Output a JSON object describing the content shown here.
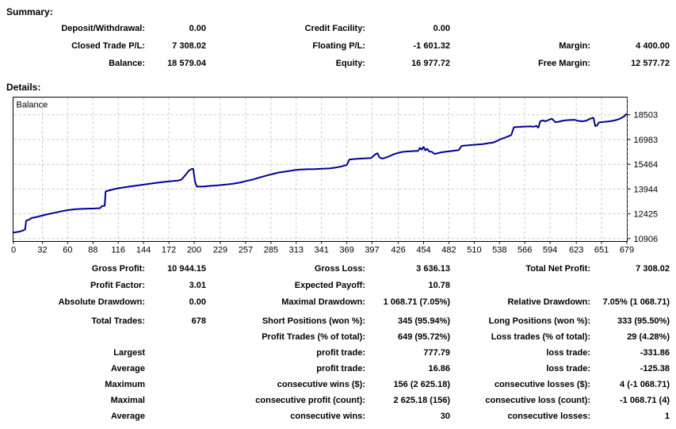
{
  "summary": {
    "title": "Summary:",
    "rows": [
      [
        "Deposit/Withdrawal:",
        "0.00",
        "Credit Facility:",
        "0.00",
        "",
        ""
      ],
      [
        "Closed Trade P/L:",
        "7 308.02",
        "Floating P/L:",
        "-1 601.32",
        "Margin:",
        "4 400.00"
      ],
      [
        "Balance:",
        "18 579.04",
        "Equity:",
        "16 977.72",
        "Free Margin:",
        "12 577.72"
      ]
    ]
  },
  "details": {
    "title": "Details:",
    "rows_a": [
      [
        "Gross Profit:",
        "10 944.15",
        "Gross Loss:",
        "3 636.13",
        "Total Net Profit:",
        "7 308.02"
      ],
      [
        "Profit Factor:",
        "3.01",
        "Expected Payoff:",
        "10.78",
        "",
        ""
      ],
      [
        "Absolute Drawdown:",
        "0.00",
        "Maximal Drawdown:",
        "1 068.71 (7.05%)",
        "Relative Drawdown:",
        "7.05% (1 068.71)"
      ]
    ],
    "rows_b": [
      [
        "Total Trades:",
        "678",
        "Short Positions (won %):",
        "345 (95.94%)",
        "Long Positions (won %):",
        "333 (95.50%)"
      ],
      [
        "",
        "",
        "Profit Trades (% of total):",
        "649 (95.72%)",
        "Loss trades (% of total):",
        "29 (4.28%)"
      ],
      [
        "Largest",
        "",
        "profit trade:",
        "777.79",
        "loss trade:",
        "-331.86"
      ],
      [
        "Average",
        "",
        "profit trade:",
        "16.86",
        "loss trade:",
        "-125.38"
      ],
      [
        "Maximum",
        "",
        "consecutive wins ($):",
        "156 (2 625.18)",
        "consecutive losses ($):",
        "4 (-1 068.71)"
      ],
      [
        "Maximal",
        "",
        "consecutive profit (count):",
        "2 625.18 (156)",
        "consecutive loss (count):",
        "-1 068.71 (4)"
      ],
      [
        "Average",
        "",
        "consecutive wins:",
        "30",
        "consecutive losses:",
        "1"
      ]
    ]
  },
  "chart_data": {
    "type": "line",
    "title": "Balance",
    "line_color": "#000096",
    "grid_color": "#c8c8c8",
    "border_color": "#000000",
    "x_ticks": [
      0,
      32,
      60,
      88,
      116,
      144,
      172,
      200,
      229,
      257,
      285,
      313,
      341,
      369,
      397,
      426,
      454,
      482,
      510,
      538,
      566,
      594,
      623,
      651,
      679
    ],
    "y_ticks": [
      10906,
      12425,
      13944,
      15464,
      16983,
      18503
    ],
    "x_range": [
      0,
      679
    ],
    "y_range": [
      10750,
      19560
    ],
    "xlabel": "",
    "ylabel": "",
    "legend_position": "none",
    "grid": true,
    "series": [
      {
        "name": "Balance",
        "points": [
          [
            0,
            11270
          ],
          [
            6,
            11320
          ],
          [
            11,
            11400
          ],
          [
            13,
            11480
          ],
          [
            14,
            12000
          ],
          [
            17,
            12060
          ],
          [
            20,
            12160
          ],
          [
            24,
            12210
          ],
          [
            28,
            12260
          ],
          [
            33,
            12330
          ],
          [
            38,
            12400
          ],
          [
            44,
            12470
          ],
          [
            50,
            12540
          ],
          [
            56,
            12610
          ],
          [
            62,
            12660
          ],
          [
            68,
            12700
          ],
          [
            74,
            12720
          ],
          [
            82,
            12740
          ],
          [
            90,
            12750
          ],
          [
            96,
            12770
          ],
          [
            98,
            12900
          ],
          [
            101,
            12910
          ],
          [
            102,
            13800
          ],
          [
            106,
            13860
          ],
          [
            110,
            13920
          ],
          [
            116,
            13990
          ],
          [
            122,
            14040
          ],
          [
            130,
            14110
          ],
          [
            138,
            14170
          ],
          [
            146,
            14230
          ],
          [
            154,
            14290
          ],
          [
            162,
            14350
          ],
          [
            170,
            14400
          ],
          [
            176,
            14430
          ],
          [
            182,
            14460
          ],
          [
            186,
            14520
          ],
          [
            190,
            14780
          ],
          [
            194,
            15060
          ],
          [
            197,
            15170
          ],
          [
            199,
            15190
          ],
          [
            201,
            14380
          ],
          [
            203,
            14090
          ],
          [
            210,
            14100
          ],
          [
            218,
            14140
          ],
          [
            226,
            14170
          ],
          [
            234,
            14210
          ],
          [
            242,
            14260
          ],
          [
            250,
            14330
          ],
          [
            258,
            14440
          ],
          [
            266,
            14540
          ],
          [
            274,
            14680
          ],
          [
            282,
            14800
          ],
          [
            288,
            14880
          ],
          [
            294,
            14960
          ],
          [
            300,
            15010
          ],
          [
            306,
            15060
          ],
          [
            312,
            15110
          ],
          [
            318,
            15140
          ],
          [
            326,
            15160
          ],
          [
            334,
            15170
          ],
          [
            342,
            15190
          ],
          [
            350,
            15210
          ],
          [
            357,
            15260
          ],
          [
            363,
            15330
          ],
          [
            369,
            15430
          ],
          [
            372,
            15760
          ],
          [
            378,
            15790
          ],
          [
            384,
            15810
          ],
          [
            390,
            15830
          ],
          [
            396,
            15850
          ],
          [
            400,
            16050
          ],
          [
            403,
            16150
          ],
          [
            405,
            15890
          ],
          [
            408,
            15810
          ],
          [
            411,
            15850
          ],
          [
            415,
            15930
          ],
          [
            420,
            16060
          ],
          [
            425,
            16150
          ],
          [
            430,
            16220
          ],
          [
            436,
            16250
          ],
          [
            442,
            16270
          ],
          [
            448,
            16290
          ],
          [
            450,
            16480
          ],
          [
            452,
            16350
          ],
          [
            454,
            16540
          ],
          [
            456,
            16310
          ],
          [
            458,
            16420
          ],
          [
            460,
            16250
          ],
          [
            463,
            16230
          ],
          [
            466,
            16100
          ],
          [
            470,
            16150
          ],
          [
            474,
            16200
          ],
          [
            478,
            16230
          ],
          [
            483,
            16260
          ],
          [
            488,
            16300
          ],
          [
            493,
            16340
          ],
          [
            496,
            16590
          ],
          [
            502,
            16620
          ],
          [
            508,
            16650
          ],
          [
            514,
            16680
          ],
          [
            520,
            16710
          ],
          [
            526,
            16760
          ],
          [
            531,
            16800
          ],
          [
            535,
            16890
          ],
          [
            539,
            17000
          ],
          [
            543,
            17080
          ],
          [
            547,
            17160
          ],
          [
            551,
            17260
          ],
          [
            554,
            17740
          ],
          [
            560,
            17760
          ],
          [
            566,
            17780
          ],
          [
            572,
            17790
          ],
          [
            576,
            17770
          ],
          [
            579,
            17820
          ],
          [
            581,
            17700
          ],
          [
            583,
            18100
          ],
          [
            586,
            18160
          ],
          [
            589,
            18100
          ],
          [
            592,
            18180
          ],
          [
            596,
            18260
          ],
          [
            600,
            18040
          ],
          [
            604,
            18080
          ],
          [
            609,
            18150
          ],
          [
            615,
            18180
          ],
          [
            621,
            18190
          ],
          [
            625,
            18130
          ],
          [
            629,
            18100
          ],
          [
            634,
            18140
          ],
          [
            638,
            18250
          ],
          [
            642,
            18330
          ],
          [
            644,
            17800
          ],
          [
            646,
            17850
          ],
          [
            648,
            18030
          ],
          [
            653,
            18060
          ],
          [
            658,
            18090
          ],
          [
            663,
            18130
          ],
          [
            668,
            18190
          ],
          [
            672,
            18280
          ],
          [
            676,
            18400
          ],
          [
            679,
            18579
          ]
        ]
      }
    ]
  }
}
